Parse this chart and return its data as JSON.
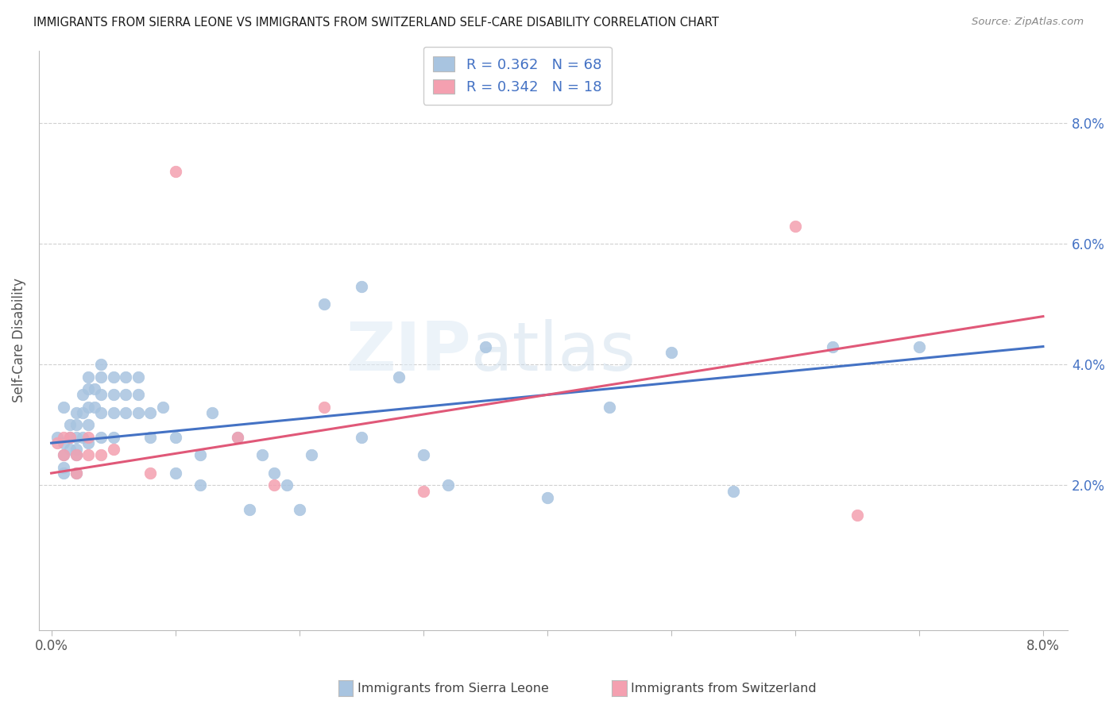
{
  "title": "IMMIGRANTS FROM SIERRA LEONE VS IMMIGRANTS FROM SWITZERLAND SELF-CARE DISABILITY CORRELATION CHART",
  "source": "Source: ZipAtlas.com",
  "xlabel_blue": "Immigrants from Sierra Leone",
  "xlabel_pink": "Immigrants from Switzerland",
  "ylabel": "Self-Care Disability",
  "R_blue": 0.362,
  "N_blue": 68,
  "R_pink": 0.342,
  "N_pink": 18,
  "color_blue": "#a8c4e0",
  "color_pink": "#f4a0b0",
  "line_blue": "#4472c4",
  "line_pink": "#e05878",
  "legend_text_color": "#4472c4",
  "right_tick_color": "#4472c4",
  "title_color": "#1a1a1a",
  "source_color": "#888888",
  "ylabel_color": "#555555",
  "grid_color": "#d0d0d0",
  "watermark": "ZIPatlas",
  "blue_trend": [
    0.027,
    0.043
  ],
  "pink_trend": [
    0.022,
    0.048
  ],
  "blue_x": [
    0.0005,
    0.001,
    0.001,
    0.001,
    0.001,
    0.001,
    0.0015,
    0.0015,
    0.0015,
    0.002,
    0.002,
    0.002,
    0.002,
    0.002,
    0.002,
    0.0025,
    0.0025,
    0.0025,
    0.003,
    0.003,
    0.003,
    0.003,
    0.003,
    0.0035,
    0.0035,
    0.004,
    0.004,
    0.004,
    0.004,
    0.004,
    0.005,
    0.005,
    0.005,
    0.005,
    0.006,
    0.006,
    0.006,
    0.007,
    0.007,
    0.007,
    0.008,
    0.008,
    0.009,
    0.01,
    0.01,
    0.012,
    0.012,
    0.013,
    0.015,
    0.016,
    0.017,
    0.018,
    0.019,
    0.02,
    0.021,
    0.022,
    0.025,
    0.025,
    0.028,
    0.03,
    0.032,
    0.035,
    0.04,
    0.045,
    0.05,
    0.055,
    0.063,
    0.07
  ],
  "blue_y": [
    0.028,
    0.033,
    0.027,
    0.025,
    0.023,
    0.022,
    0.03,
    0.028,
    0.026,
    0.032,
    0.03,
    0.028,
    0.026,
    0.025,
    0.022,
    0.035,
    0.032,
    0.028,
    0.038,
    0.036,
    0.033,
    0.03,
    0.027,
    0.036,
    0.033,
    0.04,
    0.038,
    0.035,
    0.032,
    0.028,
    0.038,
    0.035,
    0.032,
    0.028,
    0.038,
    0.035,
    0.032,
    0.038,
    0.035,
    0.032,
    0.032,
    0.028,
    0.033,
    0.028,
    0.022,
    0.025,
    0.02,
    0.032,
    0.028,
    0.016,
    0.025,
    0.022,
    0.02,
    0.016,
    0.025,
    0.05,
    0.053,
    0.028,
    0.038,
    0.025,
    0.02,
    0.043,
    0.018,
    0.033,
    0.042,
    0.019,
    0.043,
    0.043
  ],
  "pink_x": [
    0.0005,
    0.001,
    0.001,
    0.0015,
    0.002,
    0.002,
    0.003,
    0.003,
    0.004,
    0.005,
    0.008,
    0.01,
    0.015,
    0.018,
    0.022,
    0.03,
    0.06,
    0.065
  ],
  "pink_y": [
    0.027,
    0.028,
    0.025,
    0.028,
    0.025,
    0.022,
    0.028,
    0.025,
    0.025,
    0.026,
    0.022,
    0.072,
    0.028,
    0.02,
    0.033,
    0.019,
    0.063,
    0.015
  ]
}
